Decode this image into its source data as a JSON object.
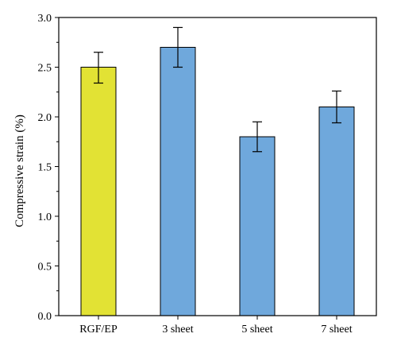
{
  "chart_data": {
    "type": "bar",
    "categories": [
      "RGF/EP",
      "3 sheet",
      "5 sheet",
      "7 sheet"
    ],
    "values": [
      2.5,
      2.7,
      1.8,
      2.1
    ],
    "errors": [
      [
        0.16,
        0.15
      ],
      [
        0.2,
        0.2
      ],
      [
        0.15,
        0.15
      ],
      [
        0.16,
        0.16
      ]
    ],
    "bar_colors": [
      "#e2e234",
      "#6fa8dc",
      "#6fa8dc",
      "#6fa8dc"
    ],
    "title": "",
    "xlabel": "",
    "ylabel": "Compressive strain (%)",
    "ylim": [
      0,
      3.0
    ],
    "yticks": [
      "0.0",
      "0.5",
      "1.0",
      "1.5",
      "2.0",
      "2.5",
      "3.0"
    ],
    "grid": false,
    "legend": "none"
  }
}
